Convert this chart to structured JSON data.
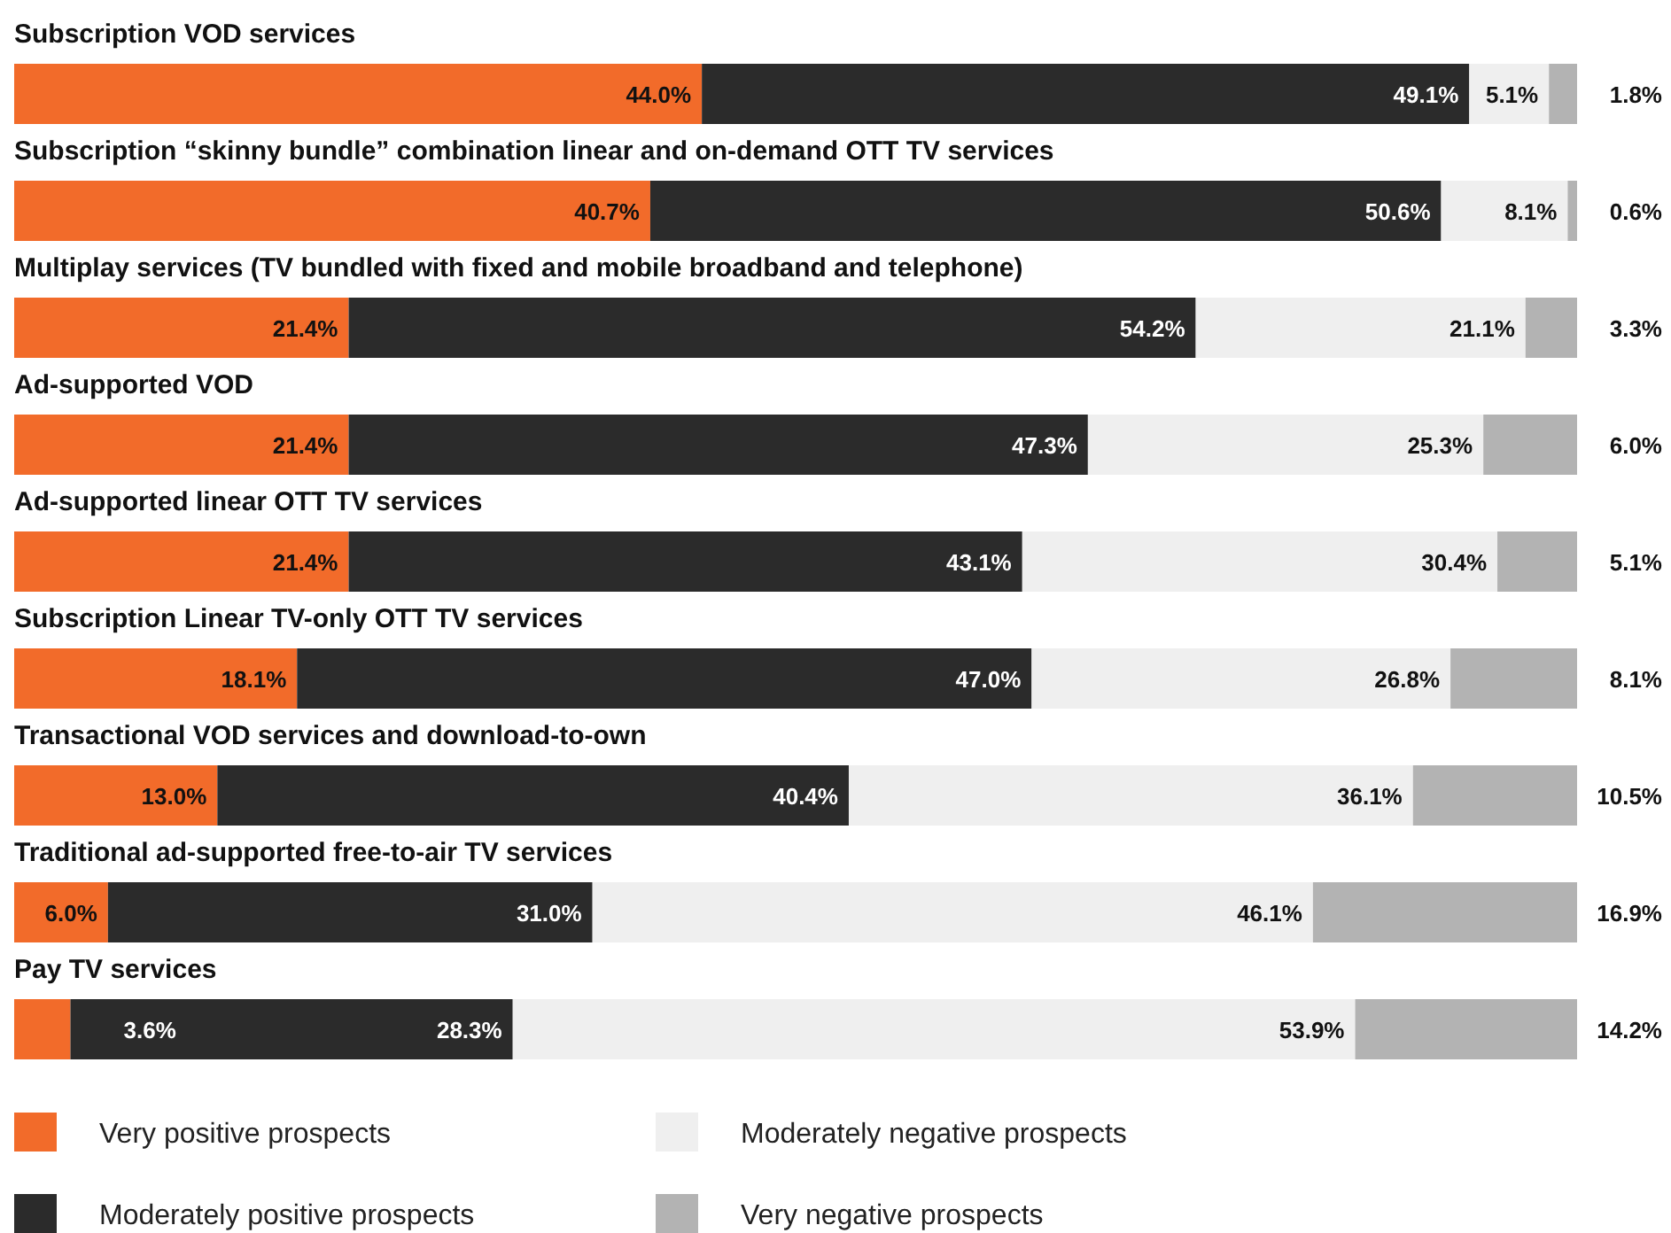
{
  "chart_data": {
    "type": "bar",
    "orientation": "horizontal",
    "stacked": true,
    "legend": "bottom",
    "xlim": [
      0,
      100
    ],
    "categories": [
      "Subscription VOD services",
      "Subscription “skinny bundle” combination linear and on-demand OTT TV services",
      "Multiplay services (TV bundled with fixed and mobile broadband and telephone)",
      "Ad-supported VOD",
      "Ad-supported linear OTT TV services",
      "Subscription Linear TV-only OTT TV services",
      "Transactional VOD services and download-to-own",
      "Traditional ad-supported free-to-air TV services",
      "Pay TV services"
    ],
    "series": [
      {
        "name": "Very positive prospects",
        "color": "#f26b2a",
        "values": [
          44.0,
          40.7,
          21.4,
          21.4,
          21.4,
          18.1,
          13.0,
          6.0,
          3.6
        ],
        "value_labels": [
          "44.0%",
          "40.7%",
          "21.4%",
          "21.4%",
          "21.4%",
          "18.1%",
          "13.0%",
          "6.0%",
          "3.6%"
        ]
      },
      {
        "name": "Moderately positive prospects",
        "color": "#2b2b2b",
        "values": [
          49.1,
          50.6,
          54.2,
          47.3,
          43.1,
          47.0,
          40.4,
          31.0,
          28.3
        ],
        "value_labels": [
          "49.1%",
          "50.6%",
          "54.2%",
          "47.3%",
          "43.1%",
          "47.0%",
          "40.4%",
          "31.0%",
          "28.3%"
        ]
      },
      {
        "name": "Moderately negative prospects",
        "color": "#efefef",
        "values": [
          5.1,
          8.1,
          21.1,
          25.3,
          30.4,
          26.8,
          36.1,
          46.1,
          53.9
        ],
        "value_labels": [
          "5.1%",
          "8.1%",
          "21.1%",
          "25.3%",
          "30.4%",
          "26.8%",
          "36.1%",
          "46.1%",
          "53.9%"
        ]
      },
      {
        "name": "Very negative prospects",
        "color": "#b3b3b3",
        "values": [
          1.8,
          0.6,
          3.3,
          6.0,
          5.1,
          8.1,
          10.5,
          16.9,
          14.2
        ],
        "value_labels": [
          "1.8%",
          "0.6%",
          "3.3%",
          "6.0%",
          "5.1%",
          "8.1%",
          "10.5%",
          "16.9%",
          "14.2%"
        ]
      }
    ]
  }
}
